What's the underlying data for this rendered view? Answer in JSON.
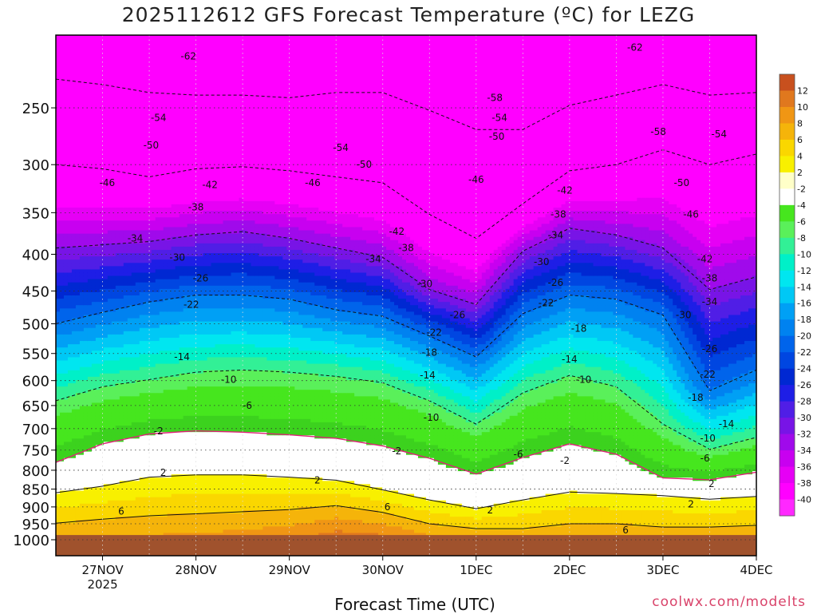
{
  "title": "2025112612 GFS Forecast Temperature (ºC) for LEZG",
  "xlabel": "Forecast Time (UTC)",
  "credit": "coolwx.com/modelts",
  "chart_data": {
    "type": "heatmap",
    "title": "2025112612 GFS Forecast Temperature (ºC) for LEZG",
    "xlabel": "Forecast Time (UTC)",
    "ylabel": "",
    "y_log_pressure": true,
    "ylim": [
      1000,
      200
    ],
    "xlim": [
      "2025-11-26T12Z",
      "2025-12-04T00Z"
    ],
    "x_ticks": [
      {
        "label": "27NOV",
        "sub": "2025",
        "t": "2025-11-27T00Z"
      },
      {
        "label": "28NOV",
        "sub": "",
        "t": "2025-11-28T00Z"
      },
      {
        "label": "29NOV",
        "sub": "",
        "t": "2025-11-29T00Z"
      },
      {
        "label": "30NOV",
        "sub": "",
        "t": "2025-11-30T00Z"
      },
      {
        "label": "1DEC",
        "sub": "",
        "t": "2025-12-01T00Z"
      },
      {
        "label": "2DEC",
        "sub": "",
        "t": "2025-12-02T00Z"
      },
      {
        "label": "3DEC",
        "sub": "",
        "t": "2025-12-03T00Z"
      },
      {
        "label": "4DEC",
        "sub": "",
        "t": "2025-12-04T00Z"
      }
    ],
    "y_ticks": [
      {
        "label": "250",
        "p": 250
      },
      {
        "label": "300",
        "p": 300
      },
      {
        "label": "350",
        "p": 350
      },
      {
        "label": "400",
        "p": 400
      },
      {
        "label": "450",
        "p": 450
      },
      {
        "label": "500",
        "p": 500
      },
      {
        "label": "550",
        "p": 550
      },
      {
        "label": "600",
        "p": 600
      },
      {
        "label": "650",
        "p": 650
      },
      {
        "label": "700",
        "p": 700
      },
      {
        "label": "750",
        "p": 750
      },
      {
        "label": "800",
        "p": 800
      },
      {
        "label": "850",
        "p": 850
      },
      {
        "label": "900",
        "p": 900
      },
      {
        "label": "950",
        "p": 950
      },
      {
        "label": "1000",
        "p": 1000
      }
    ],
    "x_time_grid_days": [
      0,
      0.5,
      1.0,
      1.5,
      2.0,
      2.5,
      3.0,
      3.5,
      4.0,
      4.5,
      5.0,
      5.5,
      6.0,
      6.5,
      7.0,
      7.5
    ],
    "isotherm_heights_hpa": {
      "-54": [
        228,
        232,
        238,
        240,
        240,
        242,
        238,
        238,
        252,
        268,
        268,
        248,
        240,
        232,
        240,
        238
      ],
      "-46": [
        300,
        304,
        312,
        304,
        302,
        306,
        312,
        318,
        352,
        380,
        340,
        306,
        300,
        286,
        300,
        290
      ],
      "-34": [
        392,
        388,
        384,
        376,
        372,
        380,
        392,
        404,
        448,
        470,
        396,
        368,
        376,
        392,
        448,
        430
      ],
      "-22": [
        500,
        482,
        466,
        456,
        456,
        462,
        478,
        488,
        520,
        556,
        484,
        456,
        462,
        486,
        620,
        580
      ],
      "-10": [
        640,
        612,
        598,
        584,
        580,
        584,
        592,
        604,
        640,
        690,
        624,
        590,
        612,
        690,
        748,
        720
      ],
      "-2": [
        780,
        735,
        712,
        705,
        708,
        714,
        722,
        740,
        770,
        810,
        768,
        735,
        760,
        820,
        825,
        805
      ],
      "2": [
        860,
        842,
        818,
        812,
        812,
        818,
        826,
        852,
        880,
        905,
        880,
        858,
        862,
        868,
        878,
        870
      ],
      "6": [
        948,
        936,
        926,
        920,
        914,
        908,
        896,
        916,
        950,
        965,
        965,
        950,
        950,
        960,
        960,
        955
      ]
    },
    "ground_hpa": 985,
    "colorbar": {
      "unit": "ºC",
      "levels": [
        "12",
        "10",
        "8",
        "6",
        "4",
        "2",
        "-2",
        "-4",
        "-6",
        "-8",
        "-10",
        "-12",
        "-14",
        "-16",
        "-18",
        "-20",
        "-22",
        "-24",
        "-26",
        "-28",
        "-30",
        "-32",
        "-34",
        "-36",
        "-38",
        "-40"
      ],
      "colors": [
        "#c8501e",
        "#e0781e",
        "#f09614",
        "#f5b40a",
        "#fad700",
        "#f8f000",
        "#ffffc8",
        "#ffffff",
        "#46e61e",
        "#5af05a",
        "#32f096",
        "#00f0c8",
        "#00e6f0",
        "#00c8f5",
        "#00a0f5",
        "#0082f0",
        "#0064eb",
        "#0046e1",
        "#0028d2",
        "#1e1ee6",
        "#501ee6",
        "#7814e6",
        "#a00aeb",
        "#c800f0",
        "#e600f5",
        "#ff00ff",
        "#ff28ff"
      ]
    },
    "contour_labels": [
      {
        "text": "-62",
        "t": 1.42,
        "p": 212
      },
      {
        "text": "-62",
        "t": 6.2,
        "p": 206
      },
      {
        "text": "-58",
        "t": 4.7,
        "p": 242
      },
      {
        "text": "-58",
        "t": 6.45,
        "p": 270
      },
      {
        "text": "-54",
        "t": 1.1,
        "p": 258
      },
      {
        "text": "-54",
        "t": 3.05,
        "p": 284
      },
      {
        "text": "-54",
        "t": 4.75,
        "p": 258
      },
      {
        "text": "-54",
        "t": 7.1,
        "p": 272
      },
      {
        "text": "-50",
        "t": 1.02,
        "p": 282
      },
      {
        "text": "-50",
        "t": 3.3,
        "p": 300
      },
      {
        "text": "-50",
        "t": 4.72,
        "p": 274
      },
      {
        "text": "-50",
        "t": 6.7,
        "p": 318
      },
      {
        "text": "-46",
        "t": 0.55,
        "p": 318
      },
      {
        "text": "-46",
        "t": 2.75,
        "p": 318
      },
      {
        "text": "-46",
        "t": 4.5,
        "p": 315
      },
      {
        "text": "-46",
        "t": 6.8,
        "p": 352
      },
      {
        "text": "-42",
        "t": 1.65,
        "p": 320
      },
      {
        "text": "-42",
        "t": 3.65,
        "p": 372
      },
      {
        "text": "-42",
        "t": 5.45,
        "p": 326
      },
      {
        "text": "-42",
        "t": 6.95,
        "p": 406
      },
      {
        "text": "-38",
        "t": 1.5,
        "p": 344
      },
      {
        "text": "-38",
        "t": 3.75,
        "p": 392
      },
      {
        "text": "-38",
        "t": 5.38,
        "p": 352
      },
      {
        "text": "-38",
        "t": 7.0,
        "p": 432
      },
      {
        "text": "-34",
        "t": 0.85,
        "p": 380
      },
      {
        "text": "-34",
        "t": 3.4,
        "p": 406
      },
      {
        "text": "-34",
        "t": 5.35,
        "p": 376
      },
      {
        "text": "-34",
        "t": 7.0,
        "p": 466
      },
      {
        "text": "-30",
        "t": 1.3,
        "p": 404
      },
      {
        "text": "-30",
        "t": 3.95,
        "p": 440
      },
      {
        "text": "-30",
        "t": 5.2,
        "p": 410
      },
      {
        "text": "-30",
        "t": 6.72,
        "p": 486
      },
      {
        "text": "-26",
        "t": 1.55,
        "p": 432
      },
      {
        "text": "-26",
        "t": 4.3,
        "p": 486
      },
      {
        "text": "-26",
        "t": 5.35,
        "p": 438
      },
      {
        "text": "-26",
        "t": 7.0,
        "p": 542
      },
      {
        "text": "-22",
        "t": 1.45,
        "p": 470
      },
      {
        "text": "-22",
        "t": 4.05,
        "p": 514
      },
      {
        "text": "-22",
        "t": 5.25,
        "p": 468
      },
      {
        "text": "-22",
        "t": 6.98,
        "p": 588
      },
      {
        "text": "-18",
        "t": 4.0,
        "p": 548
      },
      {
        "text": "-18",
        "t": 5.6,
        "p": 508
      },
      {
        "text": "-18",
        "t": 6.85,
        "p": 634
      },
      {
        "text": "-14",
        "t": 1.35,
        "p": 556
      },
      {
        "text": "-14",
        "t": 3.98,
        "p": 590
      },
      {
        "text": "-14",
        "t": 5.5,
        "p": 560
      },
      {
        "text": "-14",
        "t": 7.18,
        "p": 690
      },
      {
        "text": "-10",
        "t": 1.85,
        "p": 598
      },
      {
        "text": "-10",
        "t": 4.02,
        "p": 676
      },
      {
        "text": "-10",
        "t": 5.65,
        "p": 598
      },
      {
        "text": "-10",
        "t": 6.98,
        "p": 722
      },
      {
        "text": "-6",
        "t": 2.05,
        "p": 650
      },
      {
        "text": "-6",
        "t": 4.95,
        "p": 760
      },
      {
        "text": "-6",
        "t": 6.95,
        "p": 770
      },
      {
        "text": "-2",
        "t": 1.1,
        "p": 706
      },
      {
        "text": "-2",
        "t": 3.65,
        "p": 752
      },
      {
        "text": "-2",
        "t": 5.45,
        "p": 776
      },
      {
        "text": "2",
        "t": 1.15,
        "p": 806
      },
      {
        "text": "2",
        "t": 2.8,
        "p": 826
      },
      {
        "text": "2",
        "t": 7.02,
        "p": 836
      },
      {
        "text": "2",
        "t": 4.65,
        "p": 910
      },
      {
        "text": "2",
        "t": 6.8,
        "p": 892
      },
      {
        "text": "6",
        "t": 0.7,
        "p": 913
      },
      {
        "text": "6",
        "t": 3.55,
        "p": 900
      },
      {
        "text": "6",
        "t": 6.1,
        "p": 970
      }
    ]
  }
}
